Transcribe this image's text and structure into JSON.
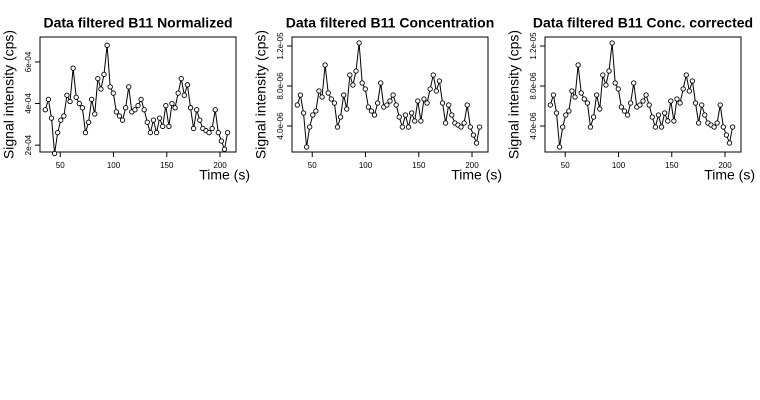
{
  "chart_data": [
    {
      "type": "line",
      "title": "Data filtered B11 Normalized",
      "xlabel": "Time (s)",
      "ylabel": "Signal intensity (cps)",
      "color": "#000000",
      "markers": true,
      "x": [
        36,
        38.9,
        41.8,
        44.7,
        47.6,
        50.5,
        53.4,
        56.3,
        59.2,
        62.1,
        65,
        67.9,
        70.8,
        73.7,
        76.6,
        79.5,
        82.4,
        85.3,
        88.2,
        91.1,
        94,
        96.9,
        99.8,
        102.7,
        105.6,
        108.5,
        111.4,
        114.3,
        117.2,
        120.1,
        123,
        125.9,
        128.8,
        131.7,
        134.6,
        137.5,
        140.4,
        143.3,
        146.2,
        149.1,
        152,
        154.9,
        157.8,
        160.7,
        163.6,
        166.5,
        169.4,
        172.3,
        175.2,
        178.1,
        181,
        183.9,
        186.8,
        189.7,
        192.6,
        195.5,
        198.4,
        201.3,
        204.2,
        207.1
      ],
      "values": [
        0.00037,
        0.00042,
        0.00033,
        0.00016,
        0.00026,
        0.00032,
        0.00034,
        0.00044,
        0.00041,
        0.00057,
        0.00043,
        0.0004,
        0.00038,
        0.00026,
        0.00031,
        0.00042,
        0.00035,
        0.00052,
        0.00047,
        0.00054,
        0.00068,
        0.00048,
        0.00045,
        0.00036,
        0.00034,
        0.00032,
        0.00038,
        0.00048,
        0.00036,
        0.00037,
        0.00039,
        0.00042,
        0.00037,
        0.00031,
        0.00026,
        0.00032,
        0.00026,
        0.00033,
        0.00029,
        0.00039,
        0.00029,
        0.0004,
        0.00038,
        0.00045,
        0.00052,
        0.00044,
        0.00049,
        0.00038,
        0.00028,
        0.00037,
        0.00032,
        0.00028,
        0.00027,
        0.00026,
        0.00028,
        0.00037,
        0.00026,
        0.00022,
        0.00018,
        0.00026
      ],
      "xlim": [
        31,
        215
      ],
      "xticks": [
        50,
        100,
        150,
        200
      ],
      "ylim": [
        0.000167,
        0.00072
      ],
      "yticks": [
        {
          "value": 0.0002,
          "label": "2e-04"
        },
        {
          "value": 0.0004,
          "label": "4e-04"
        },
        {
          "value": 0.0006,
          "label": "6e-04"
        }
      ]
    },
    {
      "type": "line",
      "title": "Data filtered B11 Concentration",
      "xlabel": "Time (s)",
      "ylabel": "Signal intensity (cps)",
      "color": "#000000",
      "markers": true,
      "x": [
        36,
        38.9,
        41.8,
        44.7,
        47.6,
        50.5,
        53.4,
        56.3,
        59.2,
        62.1,
        65,
        67.9,
        70.8,
        73.7,
        76.6,
        79.5,
        82.4,
        85.3,
        88.2,
        91.1,
        94,
        96.9,
        99.8,
        102.7,
        105.6,
        108.5,
        111.4,
        114.3,
        117.2,
        120.1,
        123,
        125.9,
        128.8,
        131.7,
        134.6,
        137.5,
        140.4,
        143.3,
        146.2,
        149.1,
        152,
        154.9,
        157.8,
        160.7,
        163.6,
        166.5,
        169.4,
        172.3,
        175.2,
        178.1,
        181,
        183.9,
        186.8,
        189.7,
        192.6,
        195.5,
        198.4,
        201.3,
        204.2,
        207.1
      ],
      "values": [
        6.1e-06,
        7.1e-06,
        5.3e-06,
        1.9e-06,
        3.9e-06,
        5.1e-06,
        5.5e-06,
        7.5e-06,
        6.9e-06,
        1.01e-05,
        7.3e-06,
        6.7e-06,
        6.3e-06,
        3.9e-06,
        4.9e-06,
        7.1e-06,
        5.7e-06,
        9.1e-06,
        8.1e-06,
        9.5e-06,
        1.23e-05,
        8.3e-06,
        7.7e-06,
        5.9e-06,
        5.5e-06,
        5.1e-06,
        6.3e-06,
        8.3e-06,
        5.9e-06,
        6.1e-06,
        6.5e-06,
        7.1e-06,
        6.1e-06,
        4.9e-06,
        3.9e-06,
        5.1e-06,
        3.9e-06,
        5.3e-06,
        4.5e-06,
        6.5e-06,
        4.5e-06,
        6.7e-06,
        6.3e-06,
        7.7e-06,
        9.1e-06,
        7.5e-06,
        8.5e-06,
        6.3e-06,
        4.3e-06,
        6.1e-06,
        5.1e-06,
        4.3e-06,
        4.1e-06,
        3.9e-06,
        4.3e-06,
        6.1e-06,
        3.9e-06,
        3.1e-06,
        2.3e-06,
        3.9e-06
      ],
      "xlim": [
        31,
        215
      ],
      "xticks": [
        50,
        100,
        150,
        200
      ],
      "ylim": [
        1.4e-06,
        1.29e-05
      ],
      "yticks": [
        {
          "value": 4e-06,
          "label": "4.0e-06"
        },
        {
          "value": 8e-06,
          "label": "8.0e-06"
        },
        {
          "value": 1.2e-05,
          "label": "1.2e-05"
        }
      ]
    },
    {
      "type": "line",
      "title": "Data filtered B11 Conc. corrected",
      "xlabel": "Time (s)",
      "ylabel": "Signal intensity (cps)",
      "color": "#000000",
      "markers": true,
      "x": [
        36,
        38.9,
        41.8,
        44.7,
        47.6,
        50.5,
        53.4,
        56.3,
        59.2,
        62.1,
        65,
        67.9,
        70.8,
        73.7,
        76.6,
        79.5,
        82.4,
        85.3,
        88.2,
        91.1,
        94,
        96.9,
        99.8,
        102.7,
        105.6,
        108.5,
        111.4,
        114.3,
        117.2,
        120.1,
        123,
        125.9,
        128.8,
        131.7,
        134.6,
        137.5,
        140.4,
        143.3,
        146.2,
        149.1,
        152,
        154.9,
        157.8,
        160.7,
        163.6,
        166.5,
        169.4,
        172.3,
        175.2,
        178.1,
        181,
        183.9,
        186.8,
        189.7,
        192.6,
        195.5,
        198.4,
        201.3,
        204.2,
        207.1
      ],
      "values": [
        6.1e-06,
        7.1e-06,
        5.3e-06,
        1.9e-06,
        3.9e-06,
        5.1e-06,
        5.5e-06,
        7.5e-06,
        6.9e-06,
        1.01e-05,
        7.3e-06,
        6.7e-06,
        6.3e-06,
        3.9e-06,
        4.9e-06,
        7.1e-06,
        5.7e-06,
        9.1e-06,
        8.1e-06,
        9.5e-06,
        1.23e-05,
        8.3e-06,
        7.7e-06,
        5.9e-06,
        5.5e-06,
        5.1e-06,
        6.3e-06,
        8.3e-06,
        5.9e-06,
        6.1e-06,
        6.5e-06,
        7.1e-06,
        6.1e-06,
        4.9e-06,
        3.9e-06,
        5.1e-06,
        3.9e-06,
        5.3e-06,
        4.5e-06,
        6.5e-06,
        4.5e-06,
        6.7e-06,
        6.3e-06,
        7.7e-06,
        9.1e-06,
        7.5e-06,
        8.5e-06,
        6.3e-06,
        4.3e-06,
        6.1e-06,
        5.1e-06,
        4.3e-06,
        4.1e-06,
        3.9e-06,
        4.3e-06,
        6.1e-06,
        3.9e-06,
        3.1e-06,
        2.3e-06,
        3.9e-06
      ],
      "xlim": [
        31,
        215
      ],
      "xticks": [
        50,
        100,
        150,
        200
      ],
      "ylim": [
        1.4e-06,
        1.29e-05
      ],
      "yticks": [
        {
          "value": 4e-06,
          "label": "4.0e-06"
        },
        {
          "value": 8e-06,
          "label": "8.0e-06"
        },
        {
          "value": 1.2e-05,
          "label": "1.2e-05"
        }
      ]
    }
  ]
}
